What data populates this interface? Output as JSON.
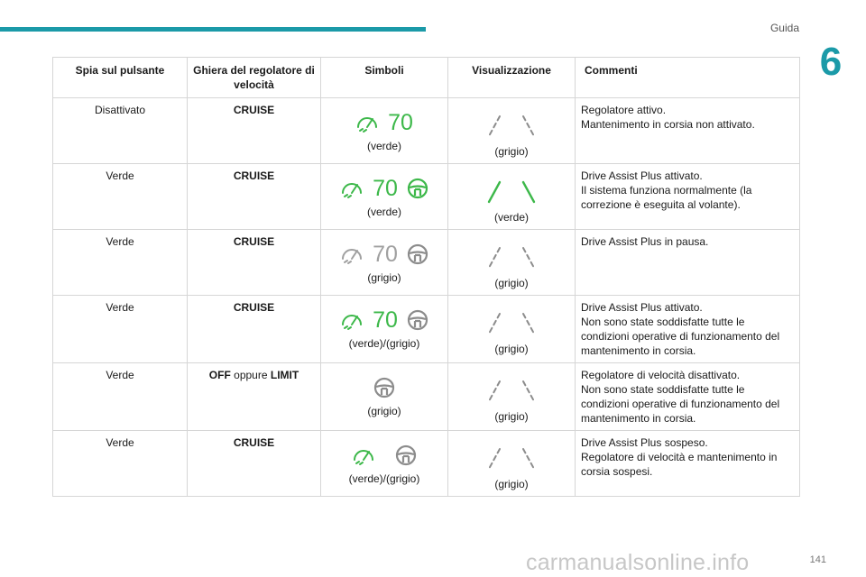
{
  "header": {
    "section": "Guida",
    "chapter": "6",
    "page": "141"
  },
  "watermark": "carmanualsonline.info",
  "colors": {
    "accent": "#1b9aa8",
    "green": "#3db84a",
    "grey": "#8c8c8c"
  },
  "table": {
    "headers": {
      "spia": "Spia sul pulsante",
      "ghiera": "Ghiera del regolatore di velocità",
      "simboli": "Simboli",
      "visualizzazione": "Visualizzazione",
      "commenti": "Commenti"
    },
    "rows": [
      {
        "spia": "Disattivato",
        "ghiera": "CRUISE",
        "speed_value": "70",
        "caption": "(verde)",
        "viz_caption": "(grigio)",
        "comment_1": "Regolatore attivo.",
        "comment_2": "Mantenimento in corsia non attivato."
      },
      {
        "spia": "Verde",
        "ghiera": "CRUISE",
        "speed_value": "70",
        "caption": "(verde)",
        "viz_caption": "(verde)",
        "comment_1": "Drive Assist Plus attivato.",
        "comment_2": "Il sistema funziona normalmente (la correzione è eseguita al volante)."
      },
      {
        "spia": "Verde",
        "ghiera": "CRUISE",
        "speed_value": "70",
        "caption": "(grigio)",
        "viz_caption": "(grigio)",
        "comment_1": "Drive Assist Plus in pausa."
      },
      {
        "spia": "Verde",
        "ghiera": "CRUISE",
        "speed_value": "70",
        "caption": "(verde)/(grigio)",
        "viz_caption": "(grigio)",
        "comment_1": "Drive Assist Plus attivato.",
        "comment_2": "Non sono state soddisfatte tutte le condizioni operative di funzionamento del mantenimento in corsia."
      },
      {
        "spia": "Verde",
        "ghiera_off": "OFF",
        "ghiera_or": "oppure",
        "ghiera_limit": "LIMIT",
        "caption": "(grigio)",
        "viz_caption": "(grigio)",
        "comment_1": "Regolatore di velocità disattivato.",
        "comment_2": "Non sono state soddisfatte tutte le condizioni operative di funzionamento del mantenimento in corsia."
      },
      {
        "spia": "Verde",
        "ghiera": "CRUISE",
        "caption": "(verde)/(grigio)",
        "viz_caption": "(grigio)",
        "comment_1": "Drive Assist Plus sospeso.",
        "comment_2": "Regolatore di velocità e mantenimento in corsia sospesi."
      }
    ]
  }
}
